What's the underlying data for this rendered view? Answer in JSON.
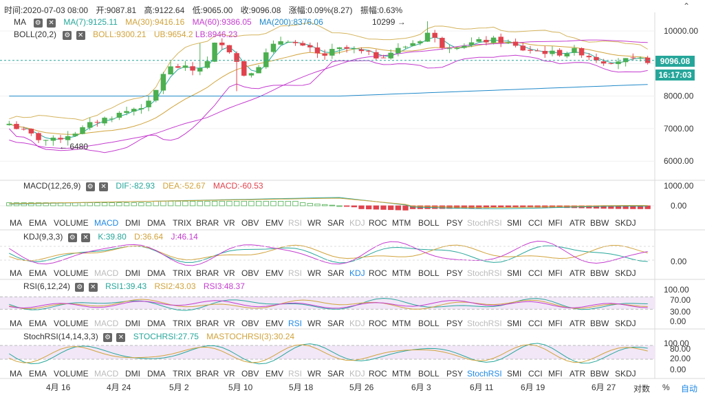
{
  "ohlc_bar": {
    "time_label": "时间:",
    "time_value": "2020-07-03 08:00",
    "open_label": "开:",
    "open_value": "9087.81",
    "high_label": "高:",
    "high_value": "9122.64",
    "low_label": "低:",
    "low_value": "9065.00",
    "close_label": "收:",
    "close_value": "9096.08",
    "change_label": "涨幅:",
    "change_value": "0.09%(8.27)",
    "amplitude_label": "振幅:",
    "amplitude_value": "0.63%"
  },
  "ma_legend": {
    "name": "MA",
    "ma7": "MA(7):9125.11",
    "ma30": "MA(30):9416.16",
    "ma60": "MA(60):9386.05",
    "ma200": "MA(200):8376.06"
  },
  "boll_legend": {
    "name": "BOLL(20,2)",
    "mid": "BOLL:9300.21",
    "ub": "UB:9654.2",
    "lb": "LB:8946.23"
  },
  "main_y_ticks": [
    "10000.00",
    "9000.00",
    "8000.00",
    "7000.00",
    "6000.00"
  ],
  "current_price": "9096.08",
  "countdown": "16:17:03",
  "max_annotation": "10299 →",
  "min_annotation": "← 6480",
  "macd_legend": {
    "name": "MACD(12,26,9)",
    "dif": "DIF:-82.93",
    "dea": "DEA:-52.67",
    "macd": "MACD:-60.53"
  },
  "macd_y_ticks": [
    "1000.00",
    "0.00"
  ],
  "kdj_legend": {
    "name": "KDJ(9,3,3)",
    "k": "K:39.80",
    "d": "D:36.64",
    "j": "J:46.14"
  },
  "kdj_y_ticks": [
    "0.00"
  ],
  "rsi_legend": {
    "name": "RSI(6,12,24)",
    "rsi1": "RSI1:39.43",
    "rsi2": "RSI2:43.03",
    "rsi3": "RSI3:48.37"
  },
  "rsi_y_ticks": [
    "100.00",
    "70.00",
    "30.00",
    "0.00"
  ],
  "stochrsi_legend": {
    "name": "StochRSI(14,14,3,3)",
    "stoch": "STOCHRSI:27.75",
    "mastoch": "MASTOCHRSI(3):30.24"
  },
  "stochrsi_y_ticks": [
    "100.00",
    "80.00",
    "20.00",
    "0.00"
  ],
  "indicator_tabs": [
    "MA",
    "EMA",
    "VOLUME",
    "MACD",
    "DMI",
    "DMA",
    "TRIX",
    "BRAR",
    "VR",
    "OBV",
    "EMV",
    "RSI",
    "WR",
    "SAR",
    "KDJ",
    "ROC",
    "MTM",
    "BOLL",
    "PSY",
    "StochRSI",
    "SMI",
    "CCI",
    "MFI",
    "ATR",
    "BBW",
    "SKDJ"
  ],
  "x_axis_labels": [
    "4月 16",
    "4月 24",
    "5月 2",
    "5月 10",
    "5月 18",
    "5月 26",
    "6月 3",
    "6月 11",
    "6月 19",
    "6月 27"
  ],
  "axis_controls": {
    "log": "对数",
    "percent": "%",
    "auto": "自动"
  },
  "icons": [
    "settings-icon",
    "close-icon",
    "chevron-up-icon"
  ],
  "colors": {
    "up": "#4caf50",
    "down": "#e0434d",
    "ma7": "#26a69a",
    "ma30": "#d1a33b",
    "ma60": "#c43ccf",
    "ma200": "#1e88c8",
    "boll": "#d4b35c",
    "link_active": "#1e88e5",
    "tab_disabled": "#bbbbbb"
  }
}
